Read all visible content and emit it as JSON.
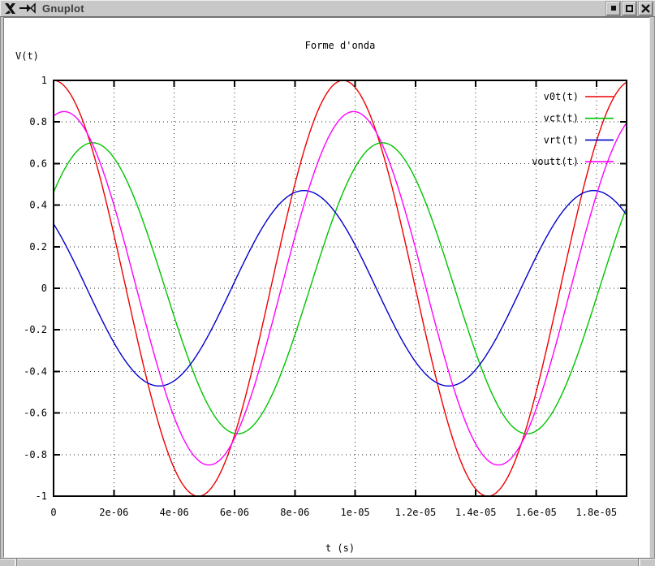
{
  "window": {
    "title": "Gnuplot",
    "icon_names": [
      "x11-logo-icon",
      "pin-icon"
    ],
    "buttons": [
      "iconify",
      "maximize",
      "close"
    ]
  },
  "chart_data": {
    "type": "line",
    "title": "Forme d'onda",
    "xlabel": "t (s)",
    "ylabel": "V(t)",
    "xlim": [
      0,
      1.9e-05
    ],
    "ylim": [
      -1,
      1
    ],
    "grid": true,
    "legend_position": "top-right-inside",
    "xticks": [
      0,
      2e-06,
      4e-06,
      6e-06,
      8e-06,
      1e-05,
      1.2e-05,
      1.4e-05,
      1.6e-05,
      1.8e-05
    ],
    "xtick_labels": [
      "0",
      "2e-06",
      "4e-06",
      "6e-06",
      "8e-06",
      "1e-05",
      "1.2e-05",
      "1.4e-05",
      "1.6e-05",
      "1.8e-05"
    ],
    "yticks": [
      -1,
      -0.8,
      -0.6,
      -0.4,
      -0.2,
      0,
      0.2,
      0.4,
      0.6,
      0.8,
      1
    ],
    "ytick_labels": [
      "-1",
      "-0.8",
      "-0.6",
      "-0.4",
      "-0.2",
      "0",
      "0.2",
      "0.4",
      "0.6",
      "0.8",
      "1"
    ],
    "waveform_model": "v(t) = amplitude * cos(2*pi*(t - peak_time_s)/period_s)",
    "series": [
      {
        "name": "v0t(t)",
        "color": "#ee0000",
        "amplitude": 1.0,
        "period_s": 9.6e-06,
        "peak_time_s": 0
      },
      {
        "name": "vct(t)",
        "color": "#00c400",
        "amplitude": 0.7,
        "period_s": 9.6e-06,
        "peak_time_s": 1.3e-06
      },
      {
        "name": "vrt(t)",
        "color": "#0000cc",
        "amplitude": 0.47,
        "period_s": 9.6e-06,
        "peak_time_s": -1.3e-06
      },
      {
        "name": "voutt(t)",
        "color": "#ff00ff",
        "amplitude": 0.85,
        "period_s": 9.6e-06,
        "peak_time_s": 3.5e-07
      }
    ]
  }
}
